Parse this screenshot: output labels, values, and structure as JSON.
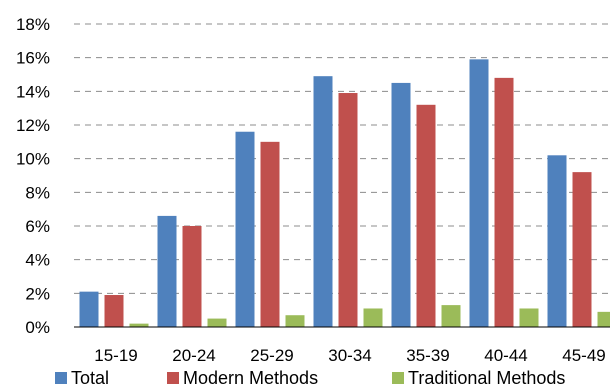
{
  "chart_data": {
    "type": "bar",
    "title": "",
    "xlabel": "",
    "ylabel": "",
    "categories": [
      "15-19",
      "20-24",
      "25-29",
      "30-34",
      "35-39",
      "40-44",
      "45-49"
    ],
    "series": [
      {
        "name": "Total",
        "color": "#4f81bd",
        "values": [
          2.1,
          6.6,
          11.6,
          14.9,
          14.5,
          15.9,
          10.2
        ]
      },
      {
        "name": "Modern Methods",
        "color": "#c0504d",
        "values": [
          1.9,
          6.0,
          11.0,
          13.9,
          13.2,
          14.8,
          9.2
        ]
      },
      {
        "name": "Traditional Methods",
        "color": "#9bbb59",
        "values": [
          0.2,
          0.5,
          0.7,
          1.1,
          1.3,
          1.1,
          0.9
        ]
      }
    ],
    "ylim": [
      0,
      18
    ],
    "yticks": [
      "0%",
      "2%",
      "4%",
      "6%",
      "8%",
      "10%",
      "12%",
      "14%",
      "16%",
      "18%"
    ],
    "grid": true,
    "legend_position": "bottom"
  }
}
